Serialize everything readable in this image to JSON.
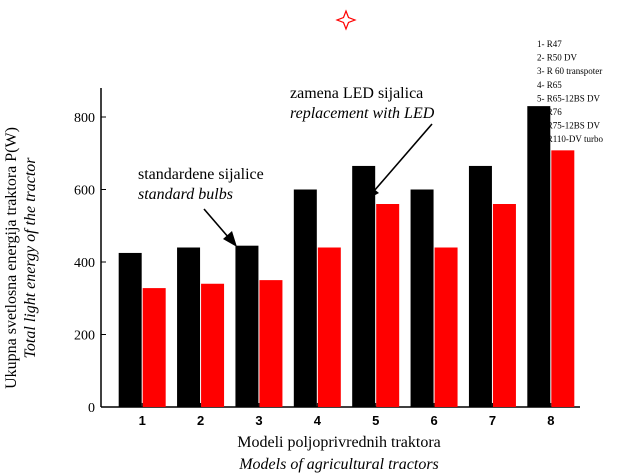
{
  "chart_data": {
    "type": "bar",
    "categories": [
      "1",
      "2",
      "3",
      "4",
      "5",
      "6",
      "7",
      "8"
    ],
    "series": [
      {
        "values": [
          425,
          440,
          445,
          600,
          665,
          600,
          665,
          830
        ]
      },
      {
        "values": [
          328,
          340,
          350,
          440,
          560,
          440,
          560,
          708
        ]
      }
    ],
    "series_colors": [
      "#000000",
      "#ff0000"
    ],
    "ylim": [
      0,
      880
    ],
    "yticks": [
      0,
      200,
      400,
      600,
      800
    ],
    "ylabel": "Ukupna svetlosna energija traktora P(W)",
    "ylabel_italic": "Total light energy of the tractor",
    "xlabel": "Modeli poljoprivrednih traktora",
    "xlabel_italic": "Models of agricultural tractors",
    "legend_title": "",
    "legend_placement": "top-right",
    "legend_items": [
      "1- R47",
      "2- R50 DV",
      "3- R 60 transpoter",
      "4- R65",
      "5- R65-12BS DV",
      "6- R76",
      "7- R75-12BS DV",
      "8- R110-DV turbo"
    ],
    "annotations": [
      {
        "line1": "standardene sijalice",
        "line2": "standard bulbs",
        "points_to_category": "3",
        "points_to_series": 0
      },
      {
        "line1": "zamena LED sijalica",
        "line2": "replacement with LED",
        "points_to_category": "5",
        "points_to_series": 1
      }
    ]
  },
  "decoration": {
    "star_icon": "four-point-star-icon",
    "star_color": "#ff0000"
  }
}
